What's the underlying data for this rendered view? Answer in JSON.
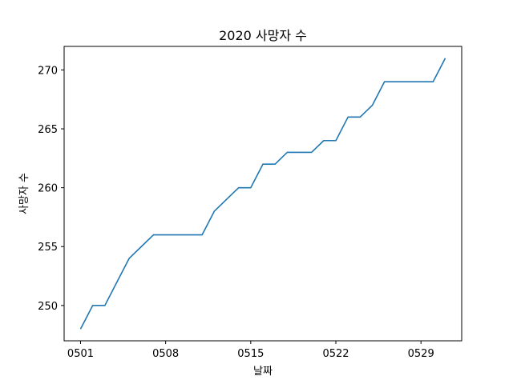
{
  "chart_data": {
    "type": "line",
    "title": "2020 사망자 수",
    "xlabel": "날짜",
    "ylabel": "사망자 수",
    "x_ticks": [
      "0501",
      "0508",
      "0515",
      "0522",
      "0529"
    ],
    "y_ticks": [
      250,
      255,
      260,
      265,
      270
    ],
    "ylim": [
      247,
      272
    ],
    "grid": false,
    "series": [
      {
        "color": "#1f77b4",
        "x": [
          "0501",
          "0502",
          "0503",
          "0504",
          "0505",
          "0506",
          "0507",
          "0508",
          "0509",
          "0510",
          "0511",
          "0512",
          "0513",
          "0514",
          "0515",
          "0516",
          "0517",
          "0518",
          "0519",
          "0520",
          "0521",
          "0522",
          "0523",
          "0524",
          "0525",
          "0526",
          "0527",
          "0528",
          "0529",
          "0530",
          "0531"
        ],
        "values": [
          248,
          250,
          250,
          252,
          254,
          255,
          256,
          256,
          256,
          256,
          256,
          258,
          259,
          260,
          260,
          262,
          262,
          263,
          263,
          263,
          264,
          264,
          266,
          266,
          267,
          269,
          269,
          269,
          269,
          269,
          271
        ]
      }
    ]
  }
}
